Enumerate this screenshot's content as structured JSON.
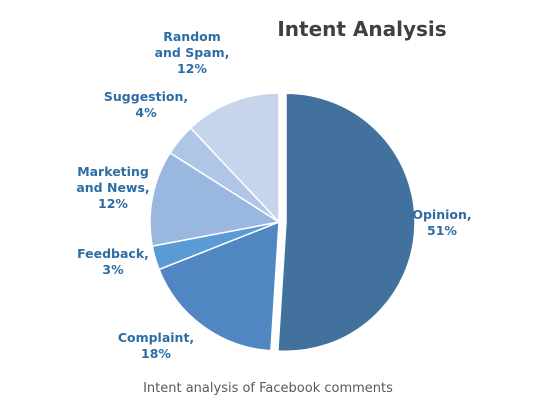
{
  "chart_data": {
    "type": "pie",
    "title": "Intent Analysis",
    "caption": "Intent analysis of Facebook comments",
    "start_angle_deg": 0,
    "direction": "clockwise",
    "slices": [
      {
        "label_lines": [
          "Opinion,"
        ],
        "percent_text": "51%",
        "value": 51,
        "color": "#41719c",
        "exploded": true
      },
      {
        "label_lines": [
          "Complaint,"
        ],
        "percent_text": "18%",
        "value": 18,
        "color": "#5086c1",
        "exploded": false
      },
      {
        "label_lines": [
          "Feedback,"
        ],
        "percent_text": "3%",
        "value": 3,
        "color": "#5b9bd5",
        "exploded": false
      },
      {
        "label_lines": [
          "Marketing",
          "and News,"
        ],
        "percent_text": "12%",
        "value": 12,
        "color": "#9ab7e0",
        "exploded": false
      },
      {
        "label_lines": [
          "Suggestion,"
        ],
        "percent_text": "4%",
        "value": 4,
        "color": "#b0c6e6",
        "exploded": false
      },
      {
        "label_lines": [
          "Random",
          "and Spam,"
        ],
        "percent_text": "12%",
        "value": 12,
        "color": "#c6d5ec",
        "exploded": false
      }
    ]
  }
}
